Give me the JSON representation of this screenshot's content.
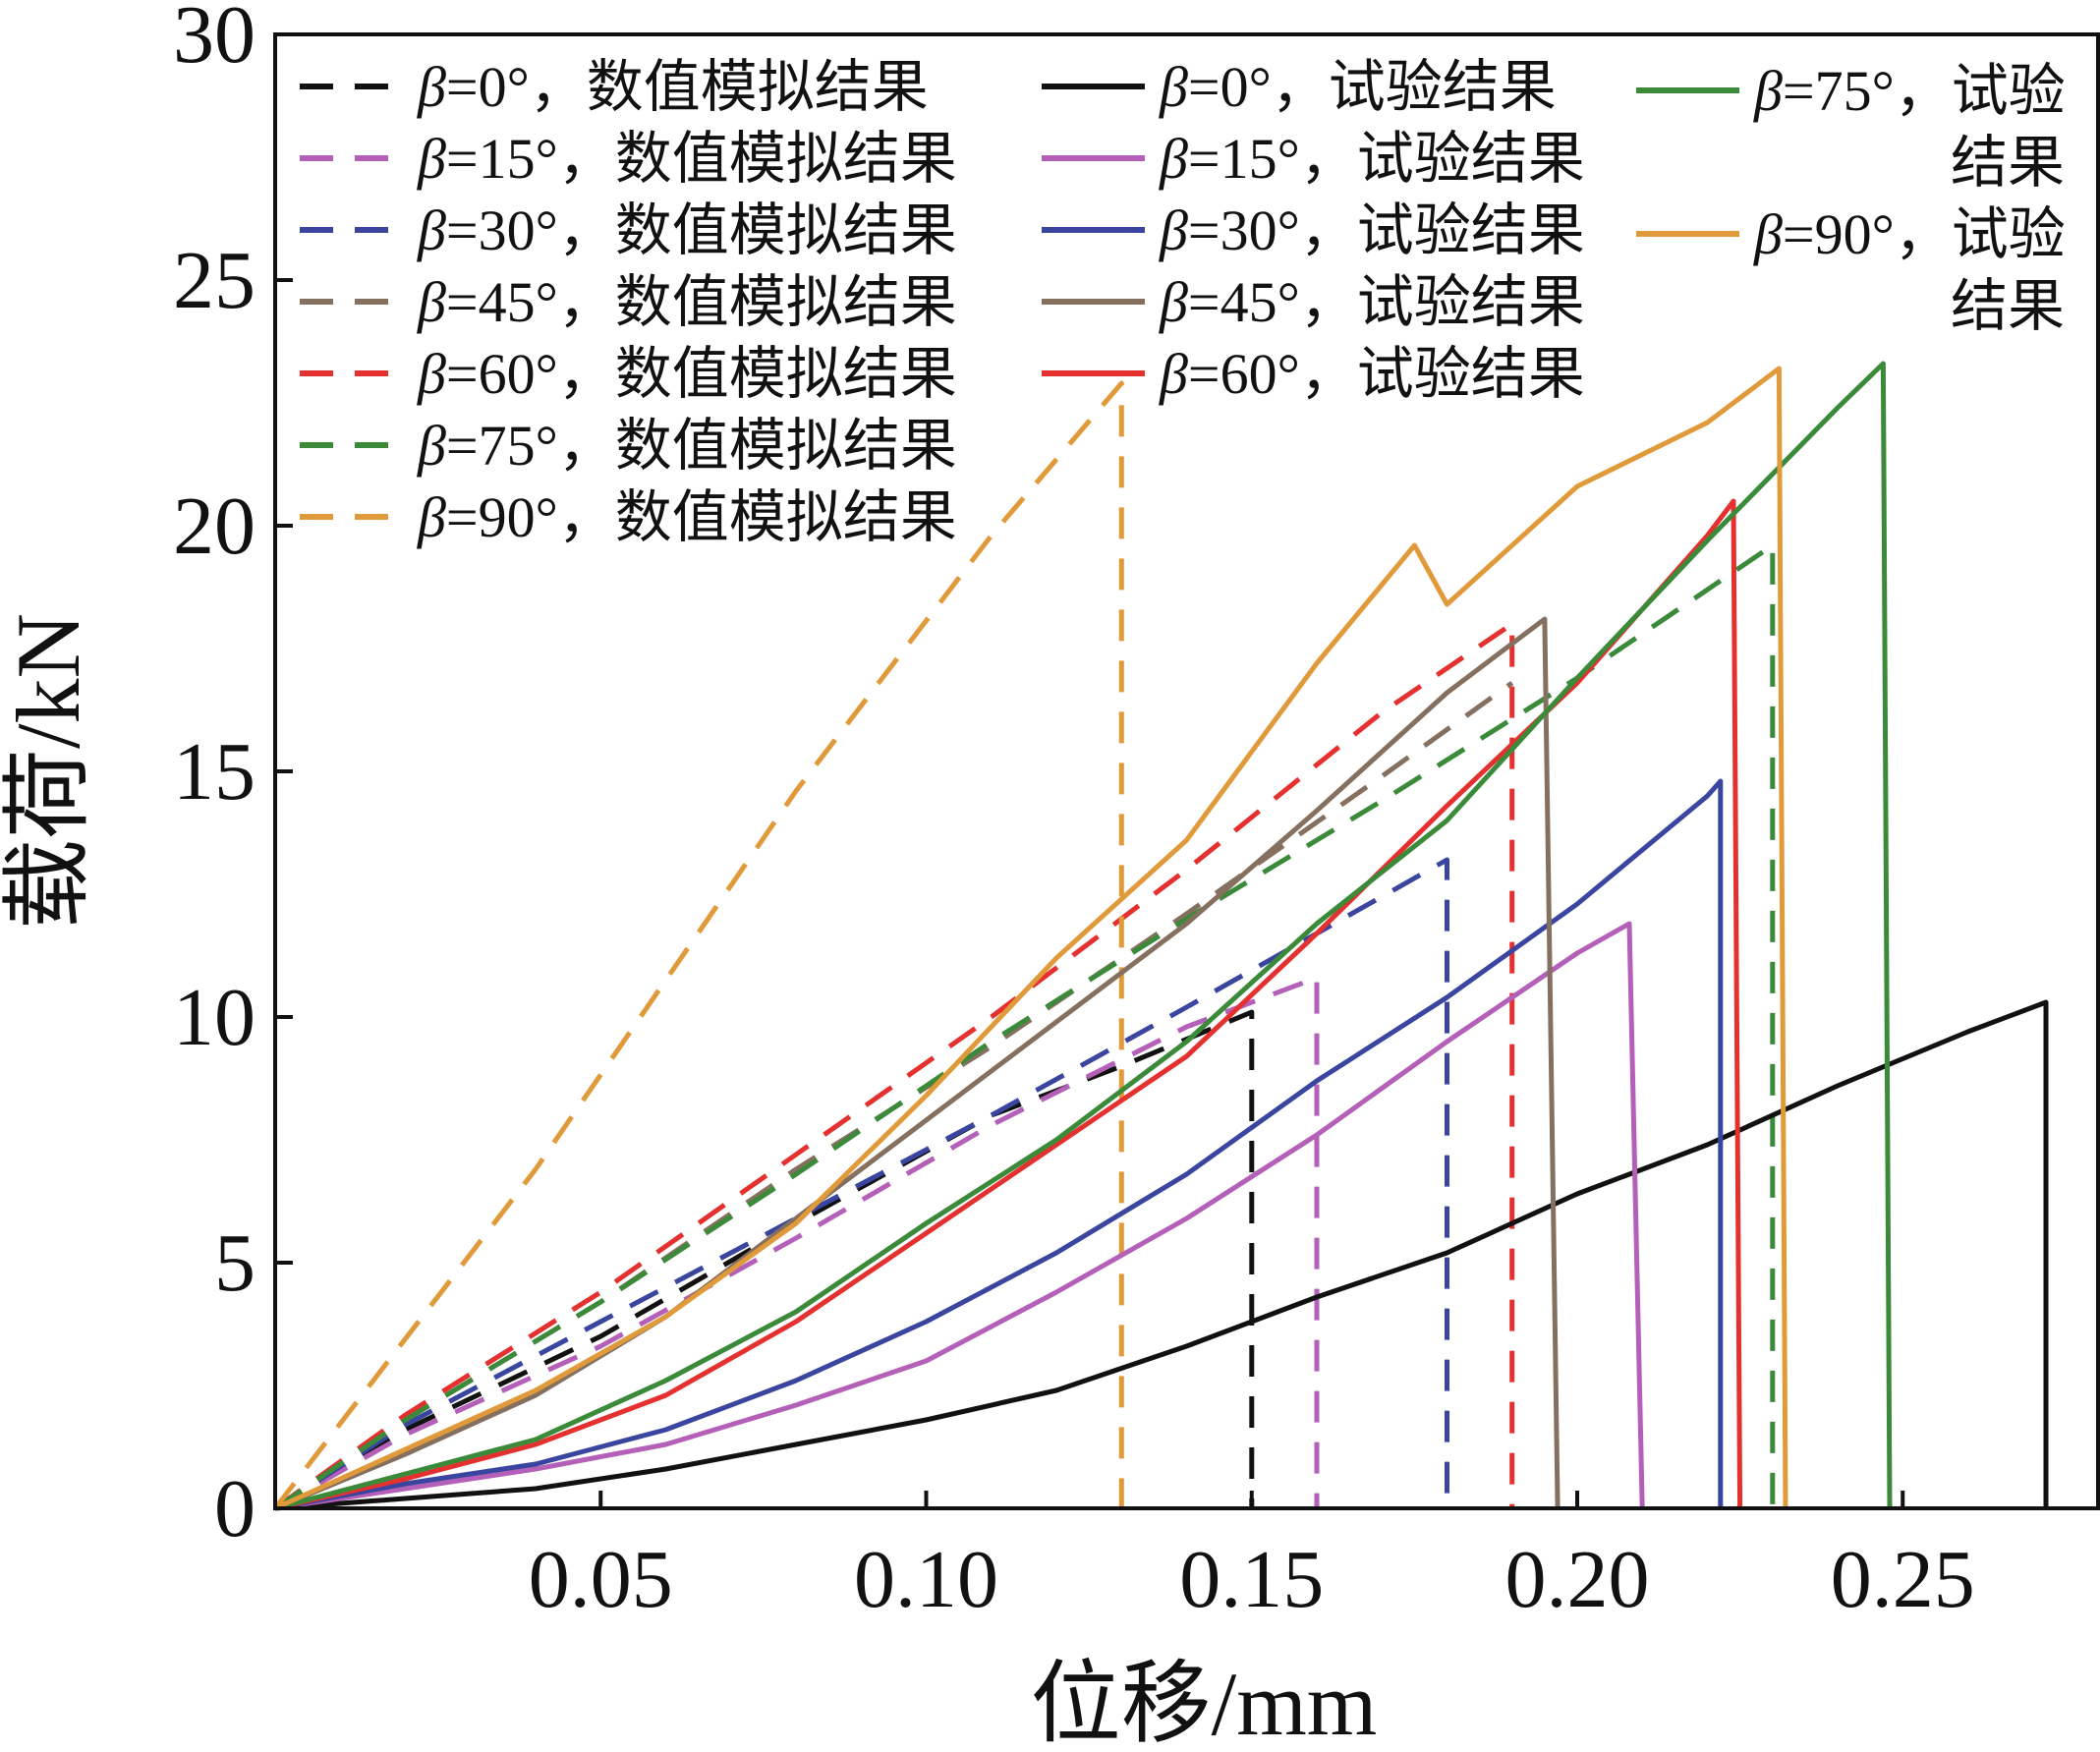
{
  "chart_data": {
    "type": "line",
    "title": "",
    "xlabel": "位移/mm",
    "ylabel": "载荷/kN",
    "xlim": [
      0,
      0.28
    ],
    "ylim": [
      0,
      30
    ],
    "xticks": [
      0.05,
      0.1,
      0.15,
      0.2,
      0.25
    ],
    "xtick_labels": [
      "0.05",
      "0.10",
      "0.15",
      "0.20",
      "0.25"
    ],
    "yticks": [
      0,
      5,
      10,
      15,
      20,
      25,
      30
    ],
    "ytick_labels": [
      "0",
      "5",
      "10",
      "15",
      "20",
      "25",
      "30"
    ],
    "grid": false,
    "legend_position": "top",
    "series": [
      {
        "name": "β=0°，数值模拟结果",
        "label_prefix": "β",
        "label_suffix": "=0°，数值模拟结果",
        "color": "#111111",
        "dashed": true,
        "x": [
          0,
          0.02,
          0.05,
          0.08,
          0.11,
          0.13,
          0.15,
          0.15
        ],
        "y": [
          0,
          1.6,
          3.5,
          5.8,
          8.0,
          9.0,
          10.1,
          0
        ]
      },
      {
        "name": "β=15°，数值模拟结果",
        "label_prefix": "β",
        "label_suffix": "=15°，数值模拟结果",
        "color": "#b45fb8",
        "dashed": true,
        "x": [
          0,
          0.02,
          0.05,
          0.08,
          0.11,
          0.14,
          0.16,
          0.16
        ],
        "y": [
          0,
          1.5,
          3.3,
          5.5,
          7.8,
          9.8,
          10.8,
          0
        ]
      },
      {
        "name": "β=30°，数值模拟结果",
        "label_prefix": "β",
        "label_suffix": "=30°，数值模拟结果",
        "color": "#3a45a0",
        "dashed": true,
        "x": [
          0,
          0.02,
          0.05,
          0.08,
          0.11,
          0.14,
          0.18,
          0.18
        ],
        "y": [
          0,
          1.7,
          3.8,
          5.9,
          8.0,
          10.2,
          13.2,
          0
        ]
      },
      {
        "name": "β=45°，数值模拟结果",
        "label_prefix": "β",
        "label_suffix": "=45°，数值模拟结果",
        "color": "#857060",
        "dashed": true,
        "x": [
          0,
          0.02,
          0.05,
          0.08,
          0.11,
          0.14,
          0.17,
          0.19
        ],
        "y": [
          0,
          1.8,
          4.2,
          6.9,
          9.4,
          12.1,
          14.9,
          16.8
        ]
      },
      {
        "name": "β=60°，数值模拟结果",
        "label_prefix": "β",
        "label_suffix": "=60°，数值模拟结果",
        "color": "#e53030",
        "dashed": true,
        "x": [
          0,
          0.02,
          0.05,
          0.08,
          0.11,
          0.14,
          0.17,
          0.19,
          0.19
        ],
        "y": [
          0,
          1.9,
          4.4,
          7.2,
          10.0,
          13.0,
          16.2,
          18.0,
          0
        ]
      },
      {
        "name": "β=75°，数值模拟结果",
        "label_prefix": "β",
        "label_suffix": "=75°，数值模拟结果",
        "color": "#3a8a3a",
        "dashed": true,
        "x": [
          0,
          0.02,
          0.05,
          0.08,
          0.11,
          0.14,
          0.17,
          0.2,
          0.23,
          0.23
        ],
        "y": [
          0,
          1.8,
          4.2,
          6.8,
          9.5,
          12.0,
          14.4,
          16.9,
          19.6,
          0
        ]
      },
      {
        "name": "β=90°，数值模拟结果",
        "label_prefix": "β",
        "label_suffix": "=90°，数值模拟结果",
        "color": "#e09a3a",
        "dashed": true,
        "x": [
          0,
          0.04,
          0.08,
          0.11,
          0.13,
          0.13
        ],
        "y": [
          0,
          6.9,
          14.6,
          19.8,
          22.9,
          0
        ]
      },
      {
        "name": "β=0°，试验结果",
        "label_prefix": "β",
        "label_suffix": "=0°，试验结果",
        "color": "#111111",
        "dashed": false,
        "x": [
          0,
          0.02,
          0.04,
          0.06,
          0.08,
          0.1,
          0.12,
          0.14,
          0.16,
          0.18,
          0.2,
          0.22,
          0.24,
          0.26,
          0.272,
          0.272
        ],
        "y": [
          0,
          0.2,
          0.4,
          0.8,
          1.3,
          1.8,
          2.4,
          3.3,
          4.3,
          5.2,
          6.4,
          7.4,
          8.6,
          9.7,
          10.3,
          0
        ]
      },
      {
        "name": "β=15°，试验结果",
        "label_prefix": "β",
        "label_suffix": "=15°，试验结果",
        "color": "#b45fb8",
        "dashed": false,
        "x": [
          0,
          0.02,
          0.04,
          0.06,
          0.08,
          0.1,
          0.12,
          0.14,
          0.16,
          0.18,
          0.2,
          0.208,
          0.21
        ],
        "y": [
          0,
          0.4,
          0.8,
          1.3,
          2.1,
          3.0,
          4.4,
          5.9,
          7.6,
          9.5,
          11.3,
          11.9,
          0
        ]
      },
      {
        "name": "β=30°，试验结果",
        "label_prefix": "β",
        "label_suffix": "=30°，试验结果",
        "color": "#3a45a0",
        "dashed": false,
        "x": [
          0,
          0.02,
          0.04,
          0.06,
          0.08,
          0.1,
          0.12,
          0.14,
          0.16,
          0.18,
          0.2,
          0.22,
          0.222,
          0.222
        ],
        "y": [
          0,
          0.5,
          0.9,
          1.6,
          2.6,
          3.8,
          5.2,
          6.8,
          8.7,
          10.4,
          12.3,
          14.5,
          14.8,
          0
        ]
      },
      {
        "name": "β=45°，试验结果",
        "label_prefix": "β",
        "label_suffix": "=45°，试验结果",
        "color": "#857060",
        "dashed": false,
        "x": [
          0,
          0.02,
          0.04,
          0.06,
          0.08,
          0.1,
          0.12,
          0.14,
          0.16,
          0.18,
          0.195,
          0.197
        ],
        "y": [
          0,
          1.1,
          2.3,
          3.9,
          5.9,
          7.9,
          9.9,
          11.9,
          14.2,
          16.6,
          18.1,
          0
        ]
      },
      {
        "name": "β=60°，试验结果",
        "label_prefix": "β",
        "label_suffix": "=60°，试验结果",
        "color": "#e53030",
        "dashed": false,
        "x": [
          0,
          0.02,
          0.04,
          0.06,
          0.08,
          0.1,
          0.12,
          0.14,
          0.16,
          0.18,
          0.2,
          0.22,
          0.224,
          0.225
        ],
        "y": [
          0,
          0.6,
          1.3,
          2.3,
          3.8,
          5.6,
          7.4,
          9.2,
          11.7,
          14.3,
          16.8,
          19.8,
          20.5,
          0
        ]
      },
      {
        "name": "β=75°，试验结果",
        "label_prefix": "β",
        "label_suffix": "=75°，试验结果",
        "color": "#3a8a3a",
        "dashed": false,
        "x": [
          0,
          0.02,
          0.04,
          0.06,
          0.08,
          0.1,
          0.12,
          0.14,
          0.16,
          0.18,
          0.2,
          0.22,
          0.24,
          0.247,
          0.248
        ],
        "y": [
          0,
          0.7,
          1.4,
          2.6,
          4.0,
          5.8,
          7.5,
          9.5,
          11.9,
          14.0,
          16.9,
          19.7,
          22.4,
          23.3,
          0
        ]
      },
      {
        "name": "β=90°，试验结果",
        "label_prefix": "β",
        "label_suffix": "=90°，试验结果",
        "color": "#e09a3a",
        "dashed": false,
        "x": [
          0,
          0.02,
          0.04,
          0.06,
          0.08,
          0.1,
          0.12,
          0.14,
          0.16,
          0.175,
          0.18,
          0.2,
          0.22,
          0.231,
          0.232
        ],
        "y": [
          0,
          1.2,
          2.4,
          3.9,
          5.8,
          8.4,
          11.2,
          13.6,
          17.2,
          19.6,
          18.4,
          20.8,
          22.1,
          23.2,
          0
        ]
      }
    ]
  }
}
